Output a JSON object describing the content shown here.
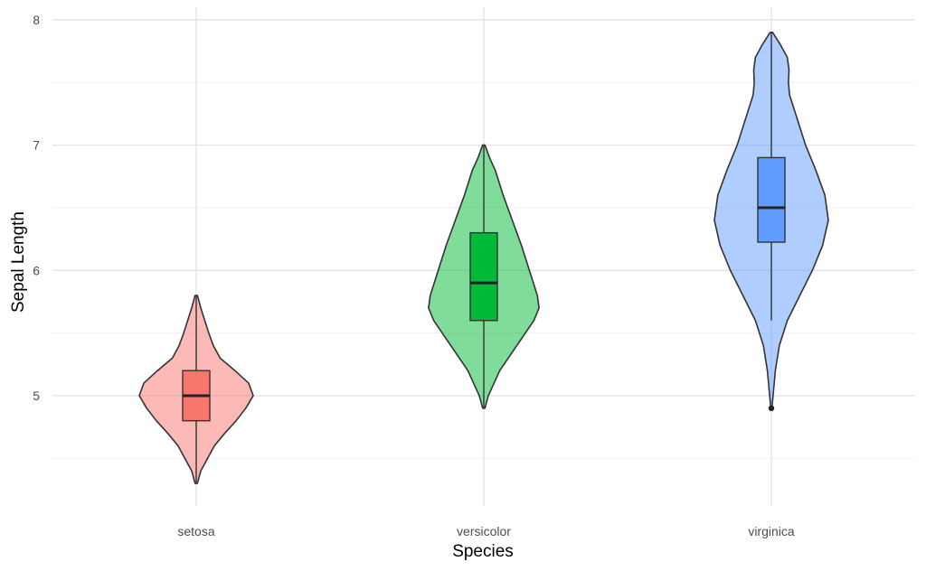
{
  "chart_data": {
    "type": "violin",
    "title": "",
    "xlabel": "Species",
    "ylabel": "Sepal Length",
    "ylim": [
      4.12,
      8.1
    ],
    "yticks": [
      5,
      6,
      7,
      8
    ],
    "grid": true,
    "legend": "none",
    "categories": [
      "setosa",
      "versicolor",
      "virginica"
    ],
    "series": [
      {
        "category": "setosa",
        "fill_color": "#F8766D",
        "min": 4.3,
        "q1": 4.8,
        "median": 5.0,
        "q3": 5.2,
        "max": 5.8,
        "whisker_low": 4.3,
        "whisker_high": 5.8,
        "outliers": [],
        "density": [
          [
            4.3,
            0.02
          ],
          [
            4.4,
            0.08
          ],
          [
            4.5,
            0.2
          ],
          [
            4.6,
            0.32
          ],
          [
            4.7,
            0.5
          ],
          [
            4.8,
            0.7
          ],
          [
            4.9,
            0.87
          ],
          [
            5.0,
            1.0
          ],
          [
            5.1,
            0.92
          ],
          [
            5.2,
            0.68
          ],
          [
            5.3,
            0.42
          ],
          [
            5.4,
            0.3
          ],
          [
            5.5,
            0.22
          ],
          [
            5.6,
            0.15
          ],
          [
            5.7,
            0.08
          ],
          [
            5.8,
            0.02
          ]
        ]
      },
      {
        "category": "versicolor",
        "fill_color": "#00BA38",
        "min": 4.9,
        "q1": 5.6,
        "median": 5.9,
        "q3": 6.3,
        "max": 7.0,
        "whisker_low": 4.9,
        "whisker_high": 7.0,
        "outliers": [],
        "density": [
          [
            4.9,
            0.02
          ],
          [
            5.0,
            0.08
          ],
          [
            5.2,
            0.28
          ],
          [
            5.4,
            0.58
          ],
          [
            5.6,
            0.88
          ],
          [
            5.7,
            0.97
          ],
          [
            5.8,
            0.94
          ],
          [
            6.0,
            0.8
          ],
          [
            6.2,
            0.66
          ],
          [
            6.4,
            0.5
          ],
          [
            6.6,
            0.34
          ],
          [
            6.8,
            0.2
          ],
          [
            6.9,
            0.1
          ],
          [
            7.0,
            0.02
          ]
        ]
      },
      {
        "category": "virginica",
        "fill_color": "#619CFF",
        "min": 4.9,
        "q1": 6.225,
        "median": 6.5,
        "q3": 6.9,
        "max": 7.9,
        "whisker_low": 5.6,
        "whisker_high": 7.9,
        "outliers": [
          4.9
        ],
        "density": [
          [
            4.9,
            0.01
          ],
          [
            5.0,
            0.03
          ],
          [
            5.2,
            0.07
          ],
          [
            5.4,
            0.14
          ],
          [
            5.6,
            0.28
          ],
          [
            5.8,
            0.5
          ],
          [
            6.0,
            0.72
          ],
          [
            6.2,
            0.9
          ],
          [
            6.4,
            1.0
          ],
          [
            6.6,
            0.94
          ],
          [
            6.8,
            0.78
          ],
          [
            7.0,
            0.6
          ],
          [
            7.2,
            0.46
          ],
          [
            7.4,
            0.32
          ],
          [
            7.5,
            0.3
          ],
          [
            7.6,
            0.31
          ],
          [
            7.7,
            0.28
          ],
          [
            7.8,
            0.16
          ],
          [
            7.9,
            0.02
          ]
        ]
      }
    ]
  }
}
